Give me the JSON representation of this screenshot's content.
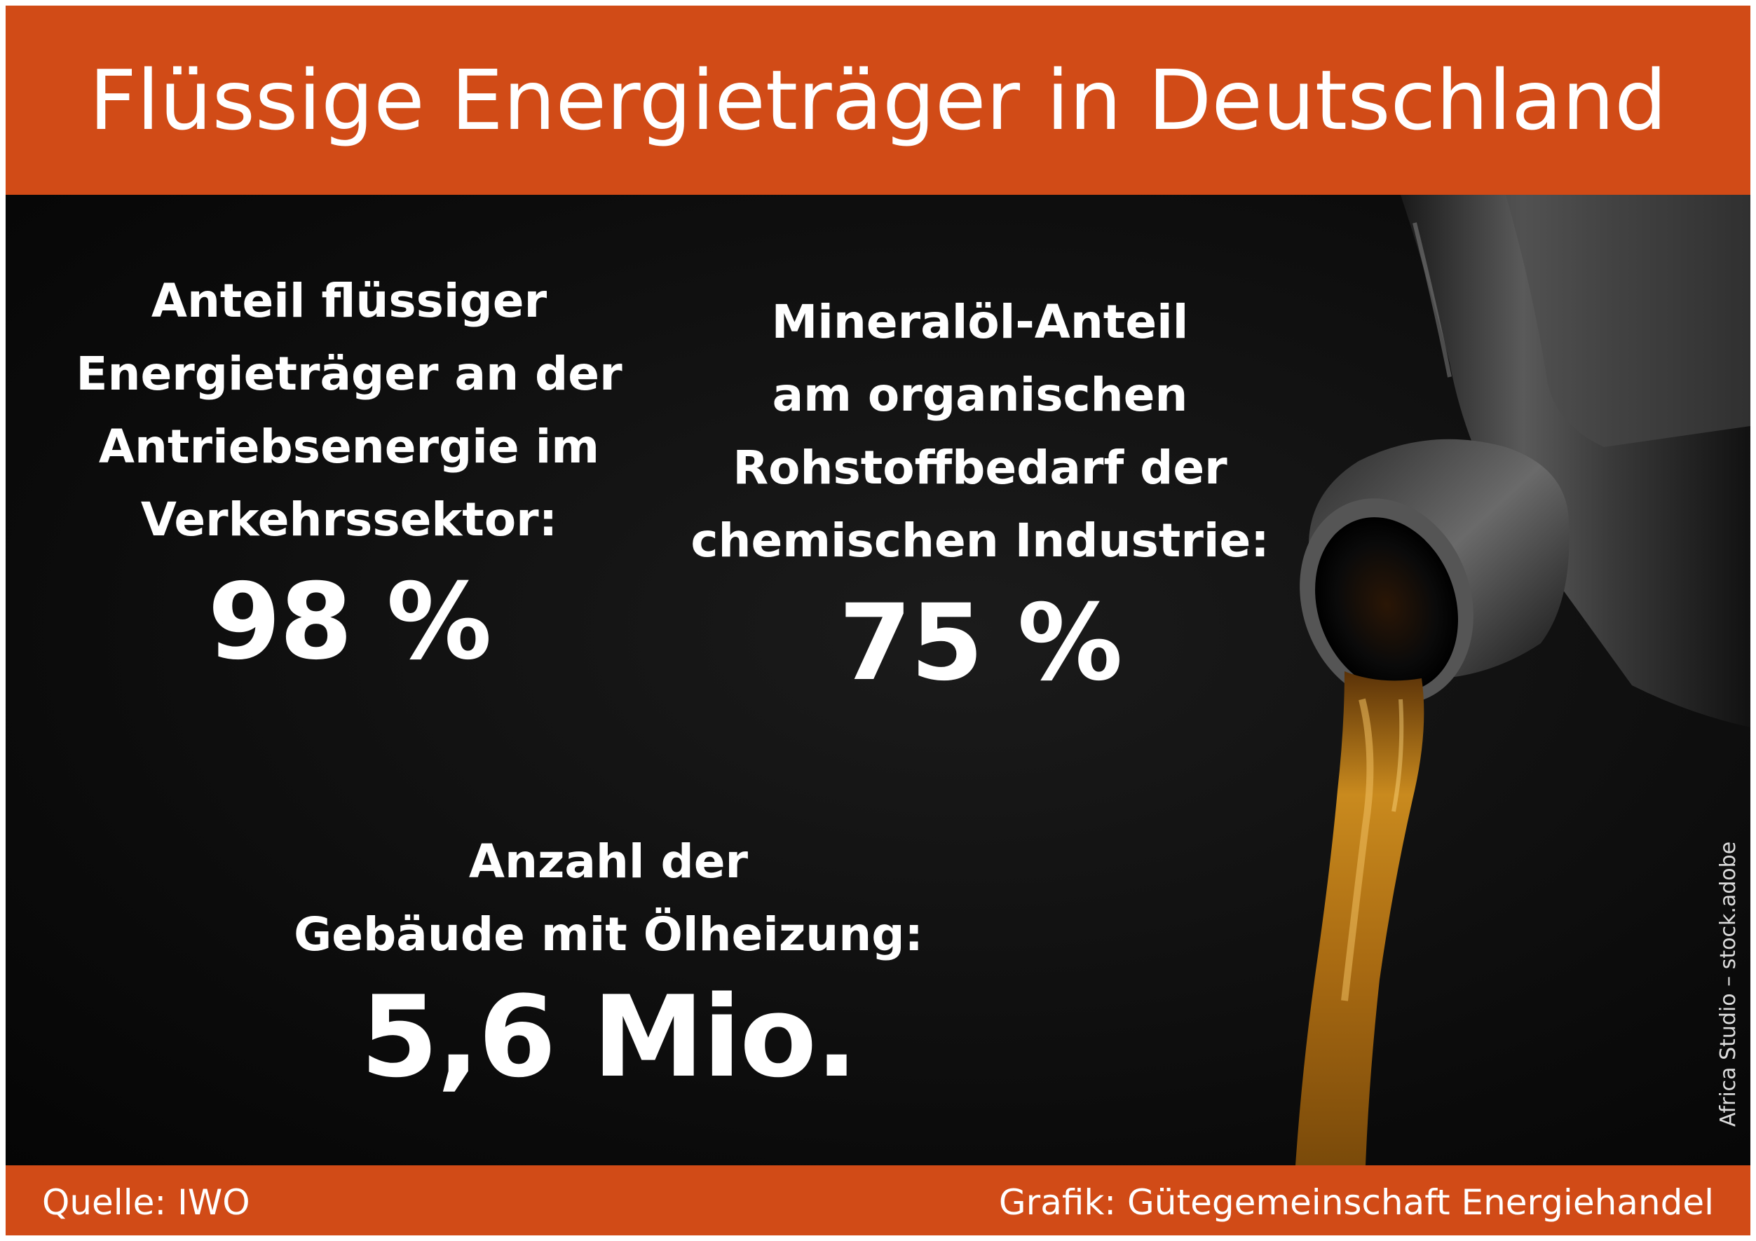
{
  "title": "Flüssige Energieträger in Deutschland",
  "stats": [
    {
      "label": "Anteil flüssiger\nEnergieträger an der\nAntriebsenergie im\nVerkehrssektor:",
      "value": "98 %"
    },
    {
      "label": "Mineralöl-Anteil\nam organischen\nRohstoffbedarf der\nchemischen Industrie:",
      "value": "75 %"
    },
    {
      "label": "Anzahl der\nGebäude mit Ölheizung:",
      "value": "5,6 Mio."
    }
  ],
  "photo_credit": "Africa Studio – stock.adobe",
  "footer": {
    "source": "Quelle: IWO",
    "graphic": "Grafik: Gütegemeinschaft Energiehandel"
  },
  "colors": {
    "accent": "#d14b17",
    "background": "#0e0e0e",
    "oil": "#c98a1e"
  }
}
